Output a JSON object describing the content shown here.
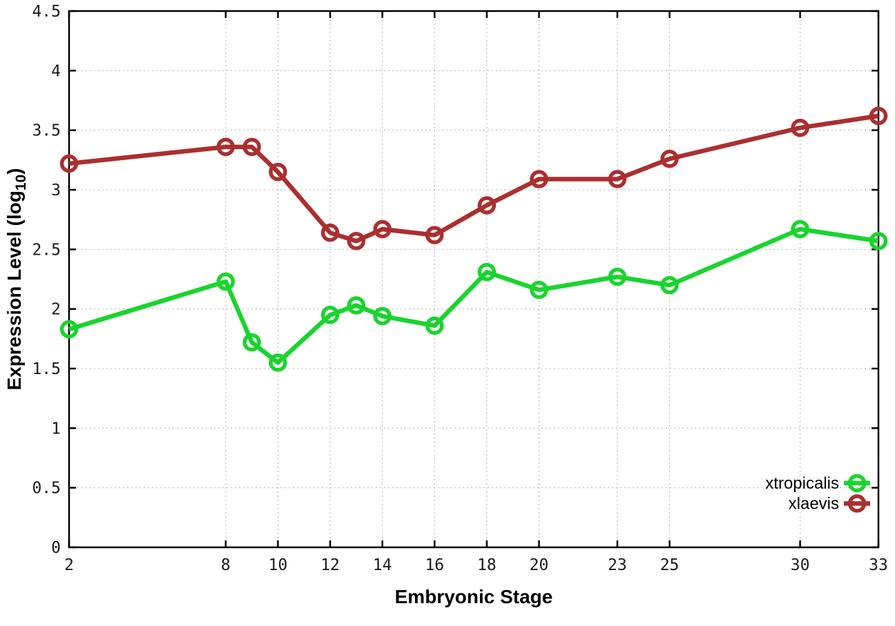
{
  "chart_data": {
    "type": "line",
    "title": "",
    "xlabel": "Embryonic Stage",
    "ylabel": "Expression Level (log10)",
    "ylabel_parts": {
      "main": "Expression Level (log",
      "sub": "10",
      "close": ")"
    },
    "xlim": [
      2,
      33
    ],
    "ylim": [
      0,
      4.5
    ],
    "grid": true,
    "legend_position": "bottom-right",
    "x_ticks": [
      2,
      8,
      10,
      12,
      14,
      16,
      18,
      20,
      23,
      25,
      30,
      33
    ],
    "x_tick_labels": [
      "2",
      "8",
      "10",
      "12",
      "14",
      "16",
      "18",
      "20",
      "23",
      "25",
      "30",
      "33"
    ],
    "y_ticks": [
      0,
      0.5,
      1,
      1.5,
      2,
      2.5,
      3,
      3.5,
      4,
      4.5
    ],
    "y_tick_labels": [
      "0",
      "0.5",
      "1",
      "1.5",
      "2",
      "2.5",
      "3",
      "3.5",
      "4",
      "4.5"
    ],
    "x": [
      2,
      8,
      9,
      10,
      12,
      13,
      14,
      16,
      18,
      20,
      23,
      25,
      30,
      33
    ],
    "series": [
      {
        "name": "xtropicalis",
        "color": "#1ad42e",
        "values": [
          1.83,
          2.23,
          1.72,
          1.55,
          1.95,
          2.03,
          1.94,
          1.86,
          2.31,
          2.16,
          2.27,
          2.2,
          2.67,
          2.57
        ]
      },
      {
        "name": "xlaevis",
        "color": "#ab2f2f",
        "values": [
          3.22,
          3.36,
          3.36,
          3.15,
          2.64,
          2.57,
          2.67,
          2.62,
          2.87,
          3.09,
          3.09,
          3.26,
          3.52,
          3.62
        ]
      }
    ],
    "style": {
      "border_color": "#000000",
      "grid_color": "#b0b0b0",
      "background": "#ffffff",
      "line_width": 6.5,
      "marker_radius": 10.5,
      "marker_stroke": 5.5
    }
  }
}
